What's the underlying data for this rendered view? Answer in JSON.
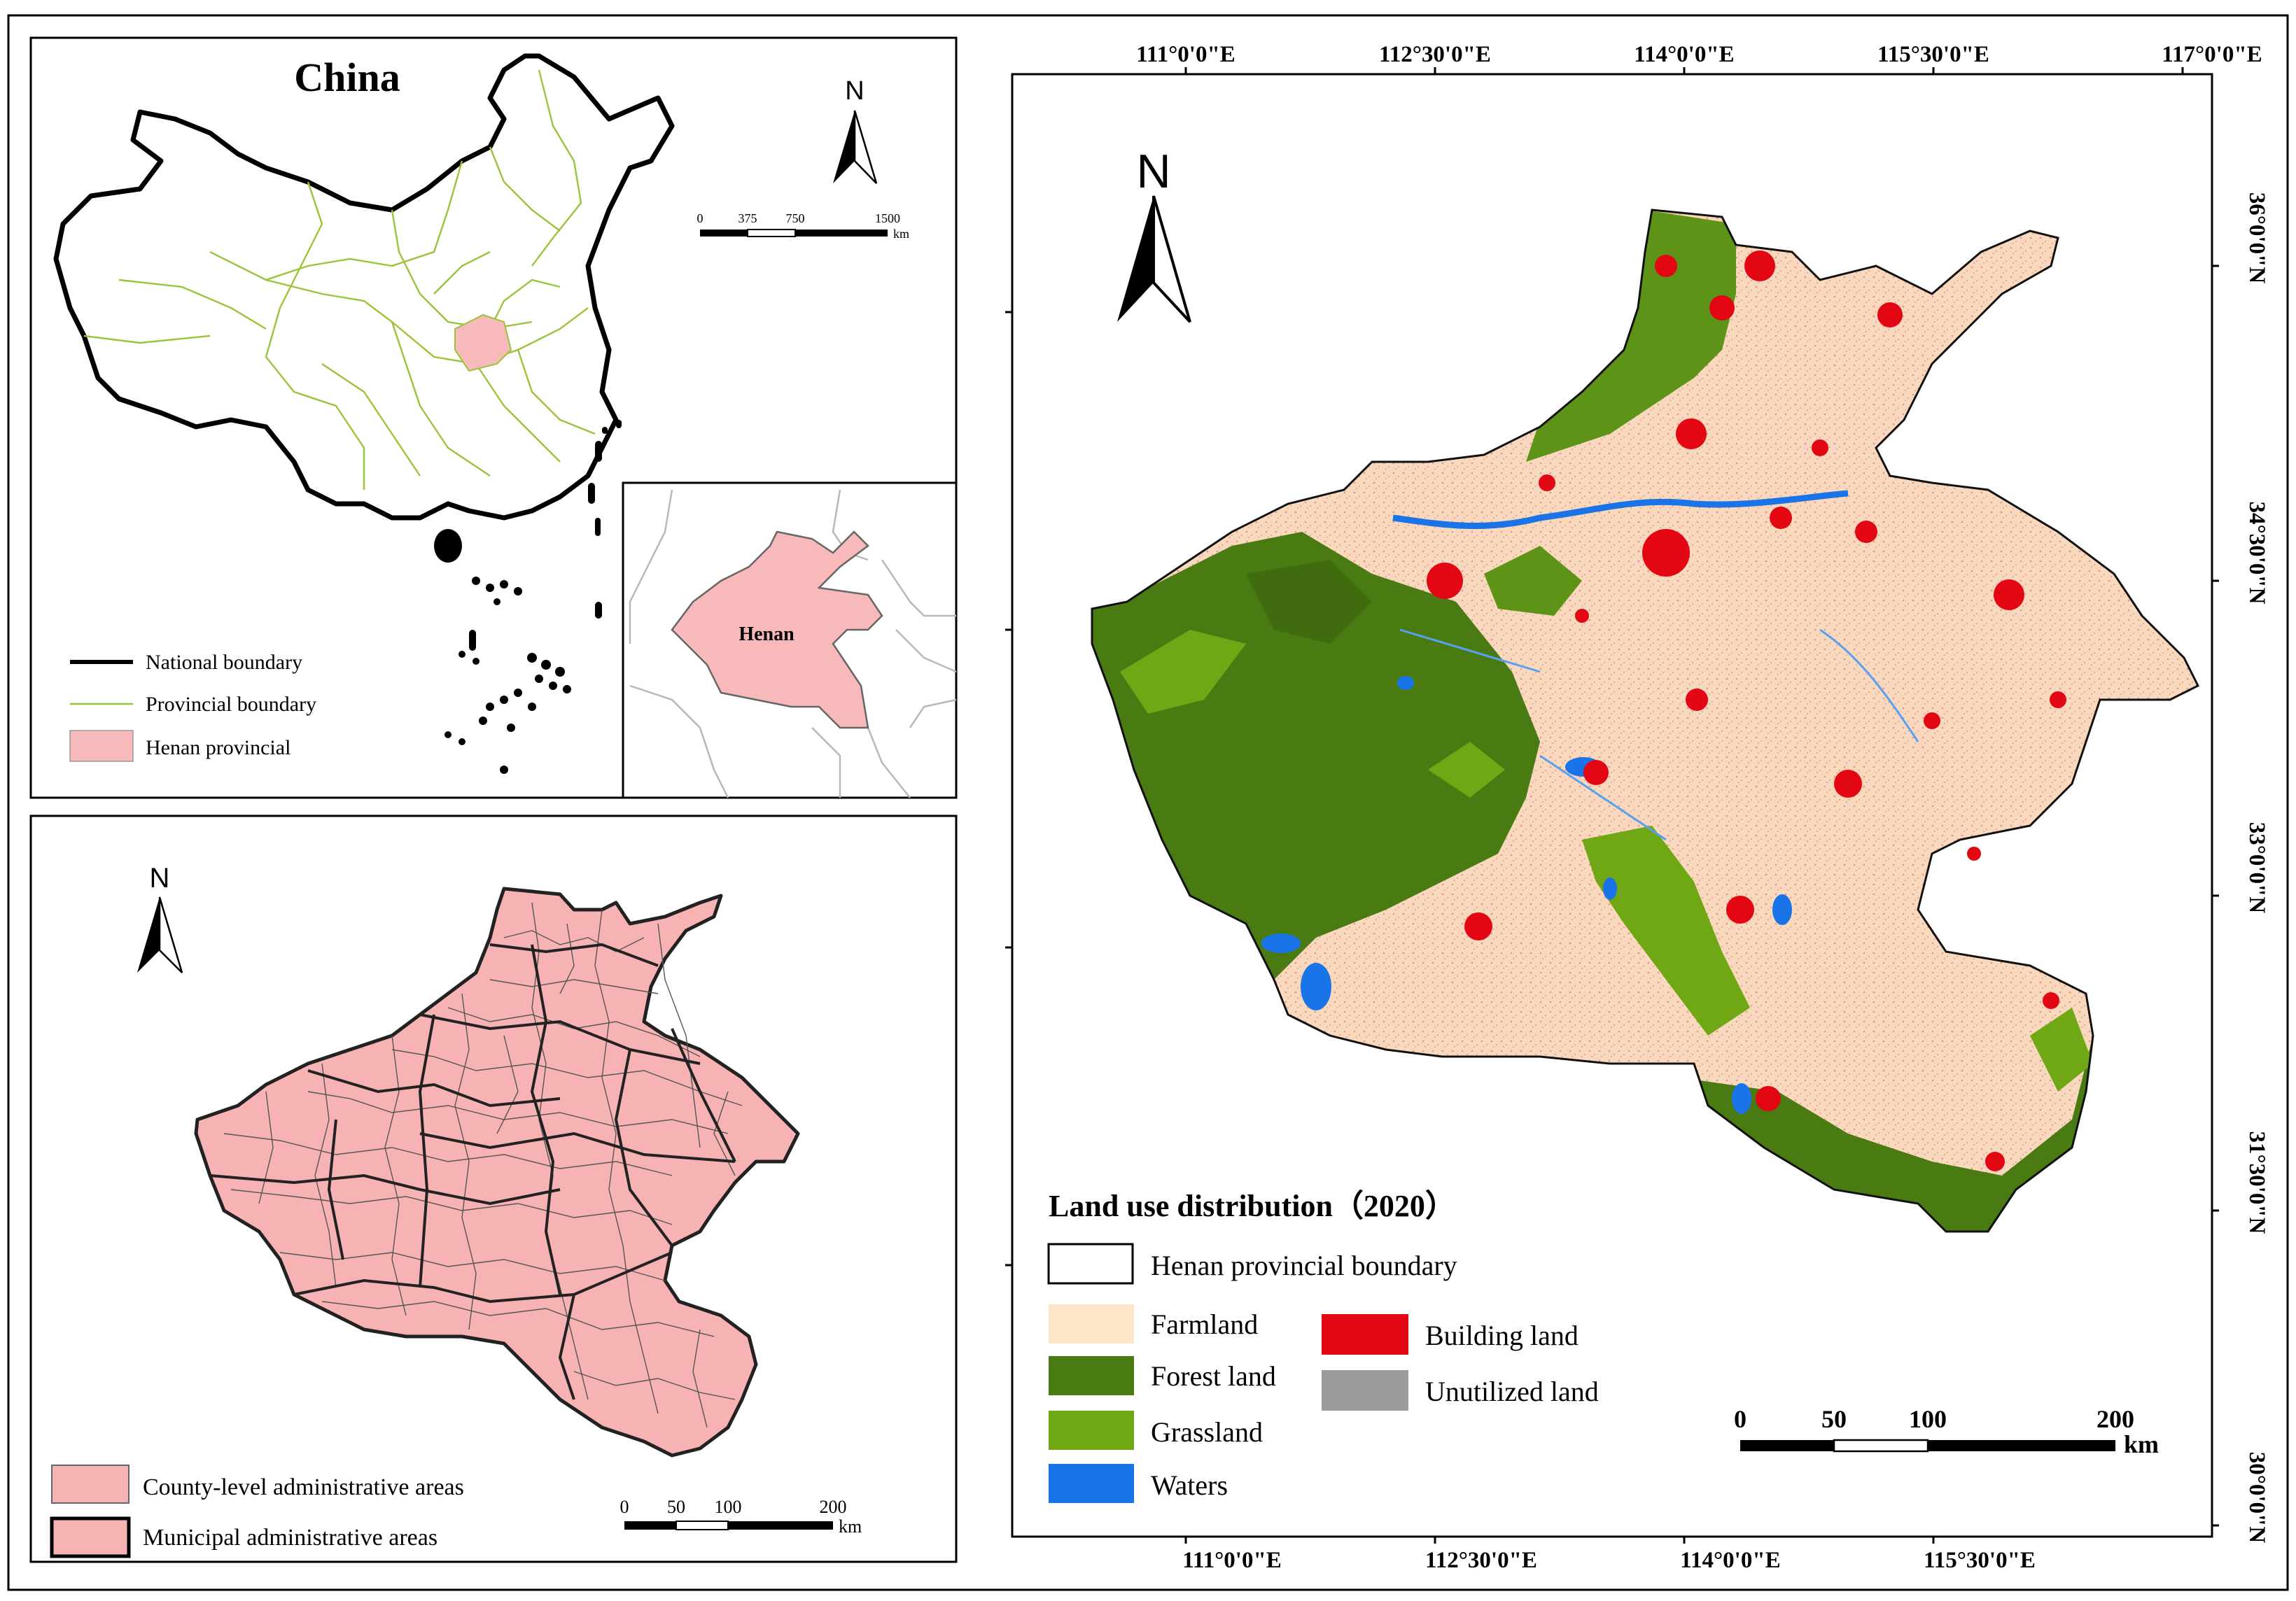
{
  "colors": {
    "national_boundary": "#000000",
    "provincial_boundary": "#9ac43a",
    "henan_fill": "#f7b9b9",
    "farmland": "#fde6c8",
    "forest": "#4a7a12",
    "grassland": "#6fa814",
    "waters": "#1a74e8",
    "building": "#e30613",
    "unutilized": "#9c9c9c",
    "county_fill": "#f7b3b3",
    "frame": "#000000"
  },
  "china_panel": {
    "title": "China",
    "north": "N",
    "scale_ticks": [
      "0",
      "375",
      "750",
      "1500"
    ],
    "scale_unit": "km",
    "inset_label": "Henan",
    "legend": [
      {
        "symbol": "line-thick",
        "label": "National boundary"
      },
      {
        "symbol": "line-thin",
        "label": "Provincial boundary"
      },
      {
        "symbol": "fill-pink",
        "label": "Henan provincial"
      }
    ]
  },
  "county_panel": {
    "north": "N",
    "scale_ticks": [
      "0",
      "50",
      "100",
      "200"
    ],
    "scale_unit": "km",
    "legend": [
      {
        "symbol": "fill-thin",
        "label": "County-level administrative areas"
      },
      {
        "symbol": "fill-thick",
        "label": "Municipal administrative areas"
      }
    ]
  },
  "landuse_panel": {
    "north": "N",
    "top_ticks": [
      "111°0'0\"E",
      "112°30'0\"E",
      "114°0'0\"E",
      "115°30'0\"E",
      "117°0'0\"E"
    ],
    "bottom_ticks": [
      "111°0'0\"E",
      "112°30'0\"E",
      "114°0'0\"E",
      "115°30'0\"E"
    ],
    "right_ticks": [
      "36°0'0\"N",
      "34°30'0\"N",
      "33°0'0\"N",
      "31°30'0\"N",
      "30°0'0\"N"
    ],
    "legend_title": "Land use distribution（2020）",
    "legend_boundary": "Henan provincial boundary",
    "legend_items_left": [
      "Farmland",
      "Forest land",
      "Grassland",
      "Waters"
    ],
    "legend_items_right": [
      "Building land",
      "Unutilized land"
    ],
    "scale_ticks": [
      "0",
      "50",
      "100",
      "200"
    ],
    "scale_unit": "km"
  }
}
